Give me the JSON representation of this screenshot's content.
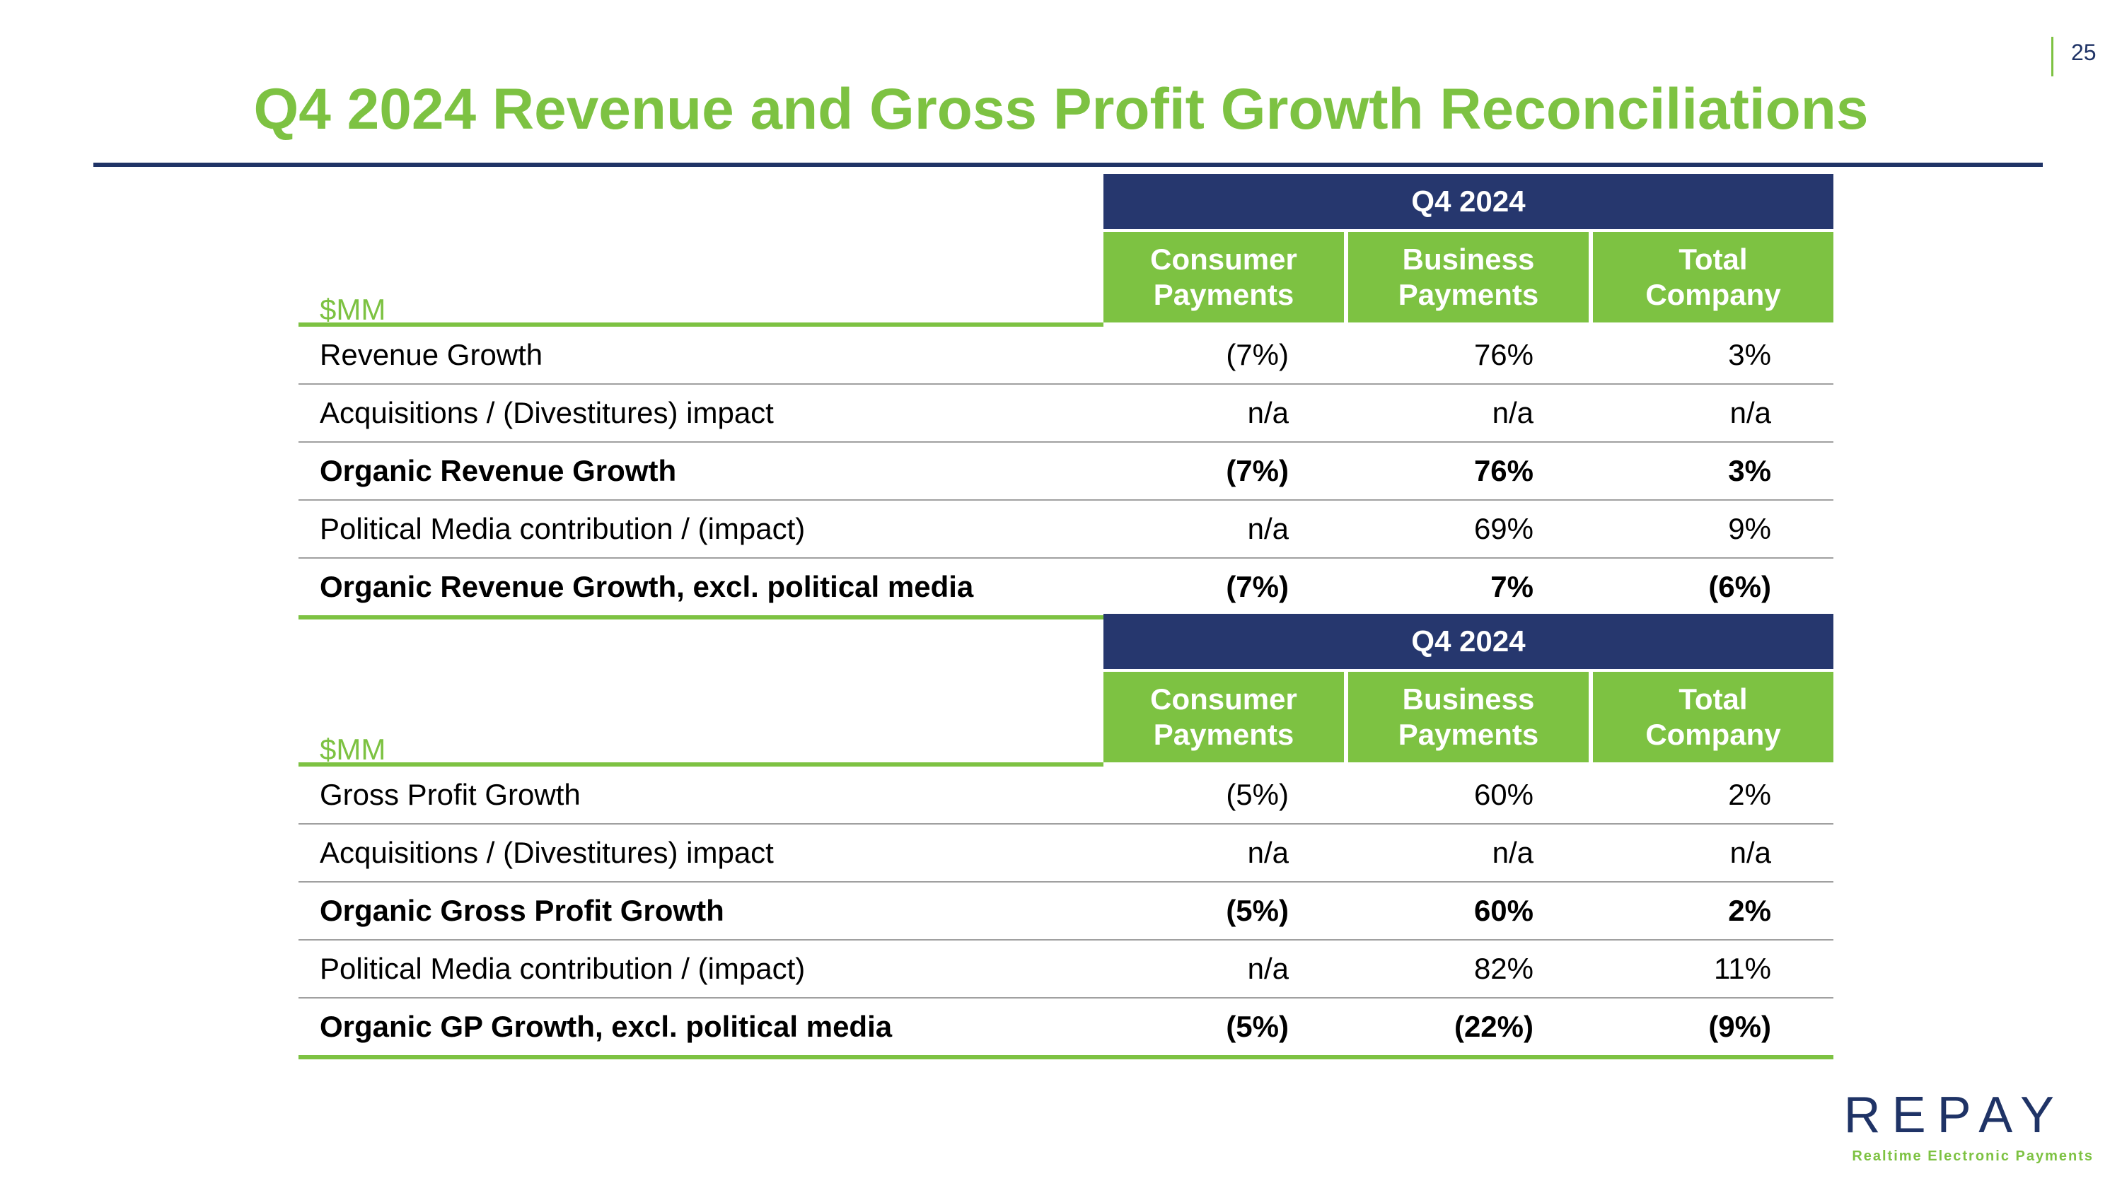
{
  "page_number": "25",
  "title": "Q4 2024 Revenue and Gross Profit Growth Reconciliations",
  "tables": [
    {
      "period": "Q4 2024",
      "unit": "$MM",
      "columns": [
        {
          "line1": "Consumer",
          "line2": "Payments"
        },
        {
          "line1": "Business",
          "line2": "Payments"
        },
        {
          "line1": "Total",
          "line2": "Company"
        }
      ],
      "rows": [
        {
          "label": "Revenue Growth",
          "values": [
            "(7%)",
            "76%",
            "3%"
          ]
        },
        {
          "label": "Acquisitions / (Divestitures) impact",
          "values": [
            "n/a",
            "n/a",
            "n/a"
          ]
        },
        {
          "label": "Organic Revenue Growth",
          "values": [
            "(7%)",
            "76%",
            "3%"
          ]
        },
        {
          "label": "Political Media contribution / (impact)",
          "values": [
            "n/a",
            "69%",
            "9%"
          ]
        },
        {
          "label": "Organic Revenue Growth, excl. political media",
          "values": [
            "(7%)",
            "7%",
            "(6%)"
          ]
        }
      ]
    },
    {
      "period": "Q4 2024",
      "unit": "$MM",
      "columns": [
        {
          "line1": "Consumer",
          "line2": "Payments"
        },
        {
          "line1": "Business",
          "line2": "Payments"
        },
        {
          "line1": "Total",
          "line2": "Company"
        }
      ],
      "rows": [
        {
          "label": "Gross Profit Growth",
          "values": [
            "(5%)",
            "60%",
            "2%"
          ]
        },
        {
          "label": "Acquisitions / (Divestitures) impact",
          "values": [
            "n/a",
            "n/a",
            "n/a"
          ]
        },
        {
          "label": "Organic Gross Profit Growth",
          "values": [
            "(5%)",
            "60%",
            "2%"
          ]
        },
        {
          "label": "Political Media contribution / (impact)",
          "values": [
            "n/a",
            "82%",
            "11%"
          ]
        },
        {
          "label": "Organic GP Growth, excl. political media",
          "values": [
            "(5%)",
            "(22%)",
            "(9%)"
          ]
        }
      ]
    }
  ],
  "logo": {
    "wordmark": "REPAY",
    "tagline": "Realtime Electronic Payments"
  },
  "colors": {
    "green": "#7dc242",
    "navy": "#1f3366",
    "header_navy": "#26376e"
  }
}
